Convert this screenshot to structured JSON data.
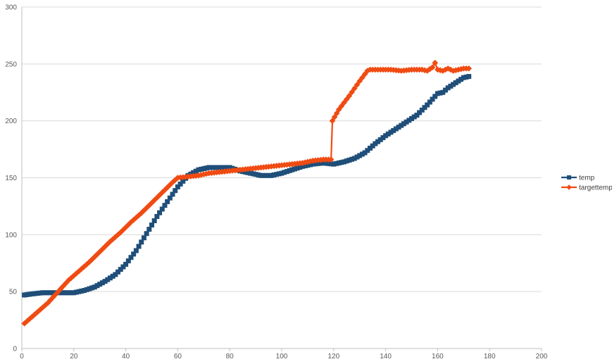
{
  "chart_data": {
    "type": "line",
    "title": "",
    "xlabel": "",
    "ylabel": "",
    "xlim": [
      0,
      200
    ],
    "ylim": [
      0,
      300
    ],
    "x_ticks": [
      0,
      20,
      40,
      60,
      80,
      100,
      120,
      140,
      160,
      180,
      200
    ],
    "y_ticks": [
      0,
      50,
      100,
      150,
      200,
      250,
      300
    ],
    "grid": "horizontal",
    "legend_position": "right",
    "series": [
      {
        "name": "temp",
        "color": "#1f4e79",
        "marker": "square",
        "points": [
          [
            1,
            47
          ],
          [
            4,
            48
          ],
          [
            8,
            49
          ],
          [
            12,
            49
          ],
          [
            16,
            49
          ],
          [
            20,
            49
          ],
          [
            24,
            51
          ],
          [
            28,
            54
          ],
          [
            32,
            59
          ],
          [
            36,
            65
          ],
          [
            40,
            74
          ],
          [
            44,
            86
          ],
          [
            48,
            101
          ],
          [
            52,
            116
          ],
          [
            56,
            129
          ],
          [
            60,
            142
          ],
          [
            64,
            152
          ],
          [
            68,
            157
          ],
          [
            72,
            159
          ],
          [
            76,
            159
          ],
          [
            80,
            159
          ],
          [
            84,
            156
          ],
          [
            88,
            154
          ],
          [
            92,
            152
          ],
          [
            96,
            152
          ],
          [
            100,
            154
          ],
          [
            104,
            157
          ],
          [
            108,
            160
          ],
          [
            112,
            162
          ],
          [
            116,
            163
          ],
          [
            120,
            162
          ],
          [
            124,
            164
          ],
          [
            128,
            167
          ],
          [
            132,
            172
          ],
          [
            136,
            180
          ],
          [
            140,
            187
          ],
          [
            144,
            193
          ],
          [
            148,
            199
          ],
          [
            152,
            205
          ],
          [
            156,
            214
          ],
          [
            158,
            219
          ],
          [
            160,
            224
          ],
          [
            162,
            225
          ],
          [
            164,
            229
          ],
          [
            166,
            232
          ],
          [
            168,
            235
          ],
          [
            170,
            238
          ],
          [
            172,
            239
          ]
        ]
      },
      {
        "name": "targettemp",
        "color": "#f04b12",
        "marker": "diamond",
        "points": [
          [
            1,
            22
          ],
          [
            6,
            32
          ],
          [
            10,
            40
          ],
          [
            14,
            50
          ],
          [
            18,
            60
          ],
          [
            22,
            68
          ],
          [
            26,
            76
          ],
          [
            30,
            85
          ],
          [
            34,
            94
          ],
          [
            38,
            102
          ],
          [
            42,
            111
          ],
          [
            46,
            119
          ],
          [
            50,
            128
          ],
          [
            54,
            137
          ],
          [
            58,
            146
          ],
          [
            60,
            150
          ],
          [
            64,
            151
          ],
          [
            68,
            152
          ],
          [
            72,
            154
          ],
          [
            76,
            155
          ],
          [
            80,
            156
          ],
          [
            84,
            157
          ],
          [
            88,
            158
          ],
          [
            92,
            159
          ],
          [
            96,
            160
          ],
          [
            100,
            161
          ],
          [
            104,
            162
          ],
          [
            108,
            163
          ],
          [
            112,
            165
          ],
          [
            116,
            166
          ],
          [
            119,
            166
          ],
          [
            119.5,
            200
          ],
          [
            122,
            210
          ],
          [
            126,
            222
          ],
          [
            130,
            235
          ],
          [
            133,
            244
          ],
          [
            134,
            245
          ],
          [
            138,
            245
          ],
          [
            142,
            245
          ],
          [
            146,
            244
          ],
          [
            150,
            245
          ],
          [
            154,
            245
          ],
          [
            156,
            244
          ],
          [
            158,
            247
          ],
          [
            159,
            251
          ],
          [
            160,
            245
          ],
          [
            162,
            244
          ],
          [
            164,
            246
          ],
          [
            166,
            244
          ],
          [
            168,
            245
          ],
          [
            170,
            246
          ],
          [
            172,
            246
          ]
        ]
      }
    ]
  }
}
